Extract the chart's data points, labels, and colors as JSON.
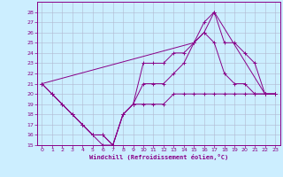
{
  "xlabel": "Windchill (Refroidissement éolien,°C)",
  "bg_color": "#cceeff",
  "grid_color": "#b0b8d0",
  "line_color": "#880088",
  "spine_color": "#880088",
  "xlim": [
    -0.5,
    23.5
  ],
  "ylim": [
    15,
    29
  ],
  "xticks": [
    0,
    1,
    2,
    3,
    4,
    5,
    6,
    7,
    8,
    9,
    10,
    11,
    12,
    13,
    14,
    15,
    16,
    17,
    18,
    19,
    20,
    21,
    22,
    23
  ],
  "yticks": [
    15,
    16,
    17,
    18,
    19,
    20,
    21,
    22,
    23,
    24,
    25,
    26,
    27,
    28
  ],
  "series": [
    {
      "x": [
        0,
        1,
        2,
        3,
        4,
        5,
        6,
        7,
        8,
        9,
        10,
        11,
        12,
        13,
        14,
        15,
        16,
        17,
        18,
        19,
        20,
        21,
        22,
        23
      ],
      "y": [
        21,
        20,
        19,
        18,
        17,
        16,
        16,
        15,
        18,
        19,
        19,
        19,
        19,
        20,
        20,
        20,
        20,
        20,
        20,
        20,
        20,
        20,
        20,
        20
      ]
    },
    {
      "x": [
        1,
        3,
        4,
        5,
        6,
        7,
        8,
        9,
        10,
        11,
        12,
        13,
        14,
        15,
        16,
        17,
        18,
        19,
        20,
        21,
        22,
        23
      ],
      "y": [
        20,
        18,
        17,
        16,
        15,
        15,
        18,
        19,
        21,
        21,
        21,
        22,
        23,
        25,
        26,
        25,
        22,
        21,
        21,
        20,
        20,
        20
      ]
    },
    {
      "x": [
        0,
        1,
        2,
        3,
        4,
        5,
        6,
        7,
        8,
        9,
        10,
        11,
        12,
        13,
        14,
        15,
        16,
        17,
        18,
        19,
        20,
        21,
        22,
        23
      ],
      "y": [
        21,
        20,
        19,
        18,
        17,
        16,
        16,
        15,
        18,
        19,
        23,
        23,
        23,
        24,
        24,
        25,
        26,
        28,
        25,
        25,
        24,
        23,
        20,
        20
      ]
    },
    {
      "x": [
        0,
        15,
        16,
        17,
        22,
        23
      ],
      "y": [
        21,
        25,
        27,
        28,
        20,
        20
      ]
    }
  ]
}
